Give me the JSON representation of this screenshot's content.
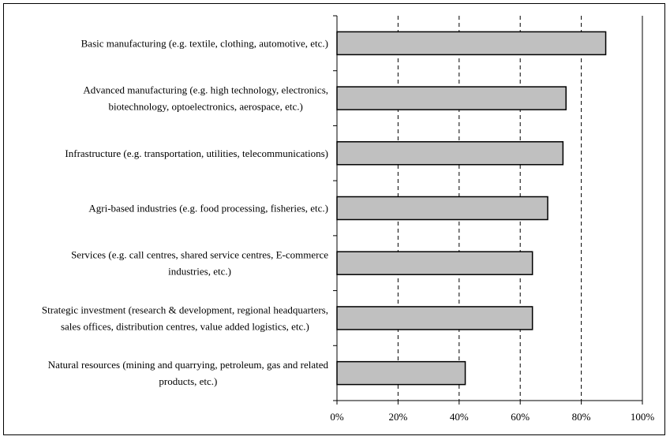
{
  "chart_data": {
    "type": "bar",
    "orientation": "horizontal",
    "title": "",
    "xlabel": "",
    "ylabel": "",
    "xlim": [
      0,
      100
    ],
    "x_ticks": [
      0,
      20,
      40,
      60,
      80,
      100
    ],
    "x_tick_labels": [
      "0%",
      "20%",
      "40%",
      "60%",
      "80%",
      "100%"
    ],
    "grid": "vertical dashed",
    "bar_color": "#c0c0c0",
    "categories": [
      [
        "Basic manufacturing (e.g. textile, clothing, automotive, etc.)"
      ],
      [
        "Advanced manufacturing (e.g. high technology, electronics,",
        "biotechnology, optoelectronics, aerospace, etc.)"
      ],
      [
        "Infrastructure (e.g. transportation, utilities, telecommunications)"
      ],
      [
        "Agri-based industries (e.g. food processing, fisheries, etc.)"
      ],
      [
        "Services (e.g. call centres, shared service centres, E-commerce",
        "industries, etc.)"
      ],
      [
        "Strategic investment (research & development, regional headquarters,",
        "sales offices, distribution centres, value added logistics, etc.)"
      ],
      [
        "Natural resources (mining and quarrying, petroleum, gas and related",
        "products, etc.)"
      ]
    ],
    "values": [
      88,
      75,
      74,
      69,
      64,
      64,
      42
    ]
  }
}
